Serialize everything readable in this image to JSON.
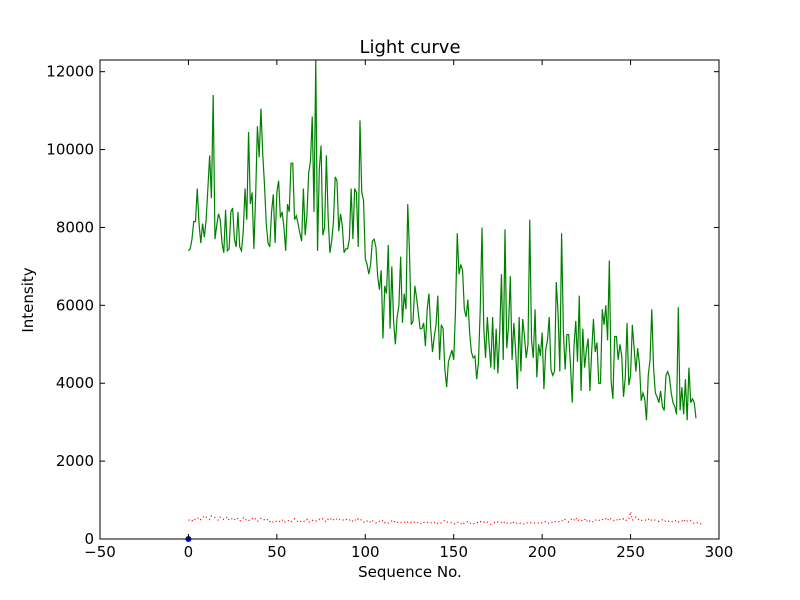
{
  "chart_data": {
    "type": "line",
    "title": "Light curve",
    "xlabel": "Sequence No.",
    "ylabel": "Intensity",
    "xlim": [
      -50,
      300
    ],
    "ylim": [
      0,
      12300
    ],
    "xticks": [
      "−50",
      "0",
      "50",
      "100",
      "150",
      "200",
      "250",
      "300"
    ],
    "yticks": [
      "0",
      "2000",
      "4000",
      "6000",
      "8000",
      "10000",
      "12000"
    ],
    "grid": false,
    "series": [
      {
        "color": "#008000",
        "style": "solid",
        "x_start": 0,
        "x_step": 1,
        "values": [
          7400,
          7450,
          7700,
          8150,
          8150,
          9000,
          8100,
          7600,
          8100,
          7750,
          8200,
          9000,
          9850,
          8750,
          11400,
          7700,
          8050,
          8350,
          8200,
          7600,
          7350,
          8450,
          7400,
          7450,
          8400,
          8500,
          7700,
          7500,
          8400,
          7500,
          7400,
          7900,
          9000,
          8200,
          10450,
          8600,
          8900,
          7450,
          8800,
          10600,
          9800,
          11050,
          9900,
          9100,
          8100,
          7600,
          7500,
          8400,
          8850,
          7600,
          8900,
          9200,
          8250,
          8400,
          8000,
          7400,
          8600,
          8400,
          9650,
          9650,
          8200,
          8300,
          8100,
          7850,
          7650,
          9000,
          7800,
          8300,
          9400,
          9700,
          10850,
          8400,
          12300,
          7400,
          9500,
          10100,
          7800,
          8000,
          9850,
          8250,
          7350,
          7650,
          8150,
          9300,
          9200,
          7900,
          8350,
          8050,
          7350,
          7450,
          7450,
          7700,
          9000,
          7700,
          9000,
          8900,
          7500,
          10750,
          8900,
          8700,
          7200,
          7050,
          6800,
          7050,
          7650,
          7700,
          7500,
          6750,
          6400,
          6900,
          5150,
          6500,
          6300,
          7550,
          5400,
          7000,
          5600,
          5000,
          5700,
          6000,
          7250,
          5550,
          6300,
          5900,
          8600,
          7350,
          5500,
          5600,
          6500,
          6200,
          5800,
          5400,
          5400,
          5550,
          4950,
          5900,
          6300,
          5400,
          4800,
          5200,
          5500,
          6250,
          4600,
          5500,
          5400,
          4350,
          3900,
          4550,
          4700,
          4850,
          4600,
          5850,
          7850,
          6800,
          7050,
          6900,
          5900,
          5700,
          6150,
          5300,
          4800,
          4650,
          4700,
          4100,
          4550,
          5900,
          8000,
          5400,
          4650,
          5700,
          5000,
          4400,
          5700,
          4350,
          5400,
          4250,
          5300,
          6800,
          4600,
          7950,
          4900,
          5450,
          6750,
          4600,
          5550,
          4850,
          3850,
          5700,
          4300,
          5650,
          5200,
          4650,
          5000,
          8200,
          5100,
          4650,
          5900,
          4150,
          5000,
          4700,
          5300,
          3850,
          4850,
          5100,
          5700,
          4350,
          4200,
          4300,
          6600,
          5800,
          4300,
          7850,
          5350,
          4350,
          5250,
          5250,
          4500,
          3500,
          4950,
          5600,
          4550,
          6250,
          3800,
          5400,
          4400,
          4850,
          5150,
          3800,
          4800,
          5650,
          4800,
          5050,
          4000,
          4000,
          5900,
          5500,
          6000,
          5100,
          7150,
          4050,
          3600,
          5200,
          5200,
          4600,
          5000,
          4700,
          3650,
          4150,
          5550,
          3950,
          4200,
          5500,
          4900,
          4300,
          4900,
          4500,
          3550,
          3750,
          3600,
          3050,
          4200,
          4600,
          5900,
          4400,
          3750,
          3650,
          3500,
          3800,
          3400,
          3300,
          4200,
          4300,
          4150,
          3750,
          3500,
          3400,
          3200,
          5950,
          3300,
          3900,
          3200,
          4100,
          3050,
          4400,
          3500,
          3600,
          3500,
          3100
        ]
      },
      {
        "color": "#ff0000",
        "style": "dotted",
        "x_start": 0,
        "x_step": 1,
        "values": [
          480,
          500,
          470,
          530,
          490,
          520,
          560,
          500,
          540,
          600,
          560,
          520,
          500,
          590,
          580,
          550,
          510,
          480,
          560,
          540,
          500,
          520,
          570,
          480,
          500,
          530,
          490,
          550,
          520,
          460,
          500,
          540,
          480,
          510,
          470,
          490,
          520,
          560,
          500,
          450,
          480,
          530,
          490,
          500,
          470,
          510,
          450,
          480,
          420,
          440,
          460,
          430,
          470,
          500,
          420,
          450,
          480,
          460,
          430,
          490,
          520,
          470,
          440,
          430,
          480,
          460,
          450,
          500,
          420,
          470,
          480,
          450,
          460,
          500,
          510,
          480,
          520,
          470,
          440,
          510,
          480,
          540,
          500,
          470,
          530,
          490,
          510,
          480,
          500,
          520,
          470,
          480,
          510,
          450,
          500,
          460,
          520,
          480,
          500,
          440,
          420,
          460,
          480,
          420,
          470,
          440,
          410,
          460,
          450,
          430,
          480,
          420,
          450,
          410,
          430,
          460,
          420,
          470,
          440,
          400,
          420,
          430,
          450,
          400,
          430,
          460,
          420,
          450,
          430,
          400,
          440,
          410,
          380,
          420,
          450,
          430,
          400,
          410,
          440,
          420,
          450,
          400,
          430,
          410,
          450,
          480,
          440,
          420,
          410,
          430,
          400,
          380,
          420,
          440,
          400,
          360,
          420,
          430,
          450,
          400,
          420,
          390,
          400,
          430,
          410,
          450,
          420,
          440,
          400,
          430,
          410,
          380,
          400,
          420,
          400,
          440,
          410,
          420,
          390,
          450,
          410,
          400,
          420,
          380,
          440,
          400,
          410,
          430,
          390,
          400,
          380,
          420,
          410,
          400,
          430,
          420,
          400,
          390,
          420,
          440,
          410,
          430,
          450,
          420,
          400,
          440,
          420,
          460,
          430,
          450,
          440,
          480,
          450,
          500,
          470,
          440,
          490,
          520,
          480,
          550,
          460,
          500,
          470,
          480,
          520,
          440,
          500,
          460,
          480,
          430,
          470,
          510,
          490,
          460,
          500,
          480,
          520,
          470,
          550,
          500,
          480,
          470,
          510,
          460,
          500,
          480,
          520,
          470,
          490,
          500,
          700,
          480,
          520,
          560,
          500,
          510,
          470,
          500,
          490,
          480,
          520,
          460,
          490,
          510,
          480,
          460,
          450,
          470,
          490,
          440,
          480,
          460,
          450,
          470,
          430,
          460,
          480,
          440,
          460,
          450,
          510,
          430,
          460,
          440,
          470,
          420,
          400,
          430,
          410,
          380,
          400,
          420
        ]
      },
      {
        "color": "#0000ff",
        "style": "marker",
        "x": [
          0
        ],
        "values": [
          0
        ]
      }
    ]
  }
}
